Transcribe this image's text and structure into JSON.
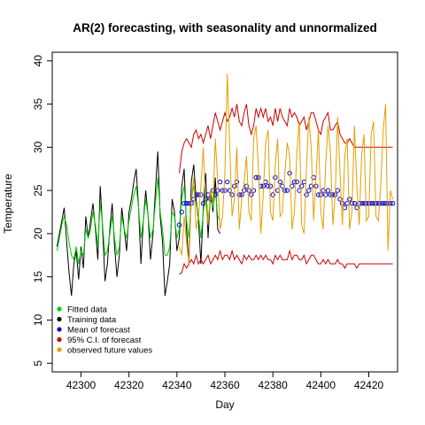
{
  "chart_data": {
    "type": "line",
    "title": "AR(2) forecasting, with seasonality and unnormalized",
    "xlabel": "Day",
    "ylabel": "Temperature",
    "xlim": [
      42288,
      42432
    ],
    "ylim": [
      4,
      41
    ],
    "xticks": [
      42300,
      42320,
      42340,
      42360,
      42380,
      42400,
      42420
    ],
    "yticks": [
      5,
      10,
      15,
      20,
      25,
      30,
      35,
      40
    ],
    "legend_position": "bottom-left",
    "legend": [
      {
        "label": "Fitted data",
        "color": "#00cd00"
      },
      {
        "label": "Training data",
        "color": "#000000"
      },
      {
        "label": "Mean of forecast",
        "color": "#0000cd"
      },
      {
        "label": "95% C.I. of forecast",
        "color": "#cd0000"
      },
      {
        "label": "observed future values",
        "color": "#e69f00"
      }
    ],
    "series": [
      {
        "name": "Training data",
        "style": "line",
        "color": "#000000",
        "x_start": 42290,
        "x_step": 1,
        "values": [
          18.5,
          20,
          21.5,
          23,
          19,
          15.5,
          12.8,
          16.5,
          18,
          14.7,
          18.5,
          16,
          22,
          19.5,
          21.5,
          23.5,
          20.5,
          17,
          25.5,
          20.5,
          14.5,
          16.5,
          20.5,
          23.5,
          18.5,
          15,
          17.5,
          23,
          20.5,
          18,
          22.5,
          24,
          26,
          27.5,
          23,
          16.5,
          21.5,
          25,
          22,
          17,
          20,
          25,
          29.5,
          22,
          19,
          12.8,
          14.5,
          16.5,
          24,
          22.5,
          18,
          19.5,
          25.5,
          27.5,
          20.5,
          16.5,
          26,
          28,
          24,
          21.5,
          16.5,
          23,
          27,
          19.5,
          25,
          22.5,
          26.5,
          20.5,
          20
        ]
      },
      {
        "name": "Fitted data",
        "style": "line",
        "color": "#00cd00",
        "x_start": 42290,
        "x_step": 1,
        "values": [
          18,
          19.5,
          21,
          22,
          21,
          19,
          17.5,
          17,
          18.5,
          16.5,
          18,
          17.5,
          20.5,
          19.5,
          20.5,
          22.5,
          21,
          18.5,
          23.5,
          21,
          17.5,
          18,
          20,
          22,
          19.5,
          17.5,
          18.5,
          22,
          20.5,
          19.5,
          21.5,
          23,
          24.5,
          25.5,
          23,
          19.5,
          21.5,
          24,
          22,
          19.5,
          20.5,
          23.5,
          26.5,
          22.5,
          20.5,
          17.5,
          17.5,
          18.5,
          22.5,
          22,
          19.5,
          20.5,
          24,
          25.5,
          21.5,
          19.5,
          24,
          25.5,
          23.5,
          22,
          19.5,
          22.5,
          25,
          21.5,
          24,
          23,
          25,
          22,
          21.5
        ]
      },
      {
        "name": "Mean of forecast",
        "style": "points",
        "color": "#0000cd",
        "x_start": 42341,
        "x_step": 1,
        "values": [
          21,
          22.5,
          23.5,
          23.5,
          23.5,
          23.5,
          24,
          24.5,
          24.5,
          24.5,
          23.5,
          24,
          24.5,
          24,
          25,
          24.5,
          25,
          26,
          25,
          25,
          26,
          25,
          24.5,
          25.5,
          26,
          24.5,
          24.5,
          25,
          25.5,
          25,
          24.5,
          25,
          26.5,
          26.5,
          25.5,
          25.5,
          26,
          25.5,
          25.5,
          24.5,
          26.5,
          25,
          26,
          25.5,
          25,
          25,
          27,
          25.5,
          26,
          26,
          25,
          25.5,
          26,
          24.5,
          25,
          25.5,
          26.5,
          25.5,
          24.5,
          24.5,
          25,
          24.5,
          25,
          24.5,
          24.5,
          24.5,
          25,
          24,
          23.5,
          23,
          23.5,
          24,
          23.5,
          23.5,
          23,
          23.5,
          23.5,
          23.5,
          23.5,
          23.5,
          23.5,
          23.5,
          23.5,
          23.5,
          23.5,
          23.5,
          23.5,
          23.5,
          23.5,
          23.5
        ]
      },
      {
        "name": "95% C.I. of forecast (upper)",
        "style": "line",
        "color": "#cd0000",
        "x_start": 42341,
        "x_step": 1,
        "values": [
          27,
          29.5,
          30.5,
          31,
          30.5,
          30,
          31.5,
          32,
          31,
          31.5,
          30.5,
          31.5,
          32.5,
          31,
          32.5,
          34,
          33,
          32,
          33,
          34,
          33,
          33.5,
          34.5,
          33.5,
          35,
          33,
          32.5,
          34,
          35,
          32.5,
          31.5,
          32.5,
          34.5,
          33.5,
          34.5,
          33.5,
          34.5,
          33,
          33.5,
          32.5,
          34.5,
          33,
          34.5,
          33.5,
          33,
          32.5,
          34.5,
          33.5,
          34,
          33.5,
          32.5,
          33,
          33.5,
          32,
          33,
          34,
          34,
          33,
          32,
          31.5,
          33,
          33.5,
          34,
          32,
          32,
          32.5,
          33,
          31.5,
          31,
          30.5,
          30.5,
          31,
          30.5,
          30,
          30,
          30,
          30,
          30,
          30,
          30,
          30,
          30,
          30,
          30,
          30,
          30,
          30,
          30,
          30,
          30
        ]
      },
      {
        "name": "95% C.I. of forecast (lower)",
        "style": "line",
        "color": "#cd0000",
        "x_start": 42341,
        "x_step": 1,
        "values": [
          15.3,
          15.5,
          16.5,
          16,
          16.5,
          17,
          16.5,
          17.5,
          16.5,
          17,
          16.5,
          17,
          17.5,
          16.5,
          17,
          17.5,
          17,
          18,
          17,
          17.5,
          17.5,
          17,
          18,
          17,
          17.5,
          17,
          16.5,
          17.5,
          17,
          17.5,
          17,
          17,
          17.5,
          17,
          17.5,
          17,
          17.5,
          17,
          17,
          16.5,
          17.5,
          17,
          17.5,
          17,
          17,
          17,
          18,
          17,
          17.5,
          17.5,
          17,
          17,
          17.5,
          16.5,
          17,
          17.5,
          17.5,
          17,
          16.5,
          16.5,
          17,
          16.5,
          17,
          16.5,
          16.5,
          16.5,
          17,
          16.5,
          16.5,
          16,
          16.5,
          16.5,
          16.5,
          16.5,
          16,
          16.5,
          16.5,
          16.5,
          16.5,
          16.5,
          16.5,
          16.5,
          16.5,
          16.5,
          16.5,
          16.5,
          16.5,
          16.5,
          16.5,
          16.5
        ]
      },
      {
        "name": "observed future values",
        "style": "line",
        "color": "#e69f00",
        "x_start": 42341,
        "x_step": 1,
        "values": [
          18.5,
          17.5,
          22,
          19,
          16.5,
          24,
          26.5,
          20.5,
          22,
          25.5,
          30,
          23.5,
          21,
          25,
          23.5,
          31,
          26,
          20.5,
          22,
          27,
          38.5,
          30.5,
          22,
          24,
          30,
          20.5,
          24,
          26,
          29,
          22.5,
          21.5,
          31,
          32.5,
          27.5,
          20,
          24.5,
          30.5,
          32,
          22.5,
          21.5,
          28,
          31,
          22,
          22.5,
          27,
          30.5,
          29,
          20.5,
          22.5,
          29.5,
          33,
          21,
          20,
          27.5,
          33.5,
          30,
          21.5,
          26.5,
          32,
          22.5,
          20.5,
          28,
          32.5,
          29.5,
          21,
          24.5,
          33.5,
          27,
          21,
          29,
          31,
          20.5,
          22.5,
          32.5,
          25.5,
          21,
          29,
          31.5,
          21.5,
          22,
          31.5,
          33,
          22,
          21.5,
          25.5,
          32,
          35,
          18,
          25,
          24
        ]
      }
    ]
  }
}
